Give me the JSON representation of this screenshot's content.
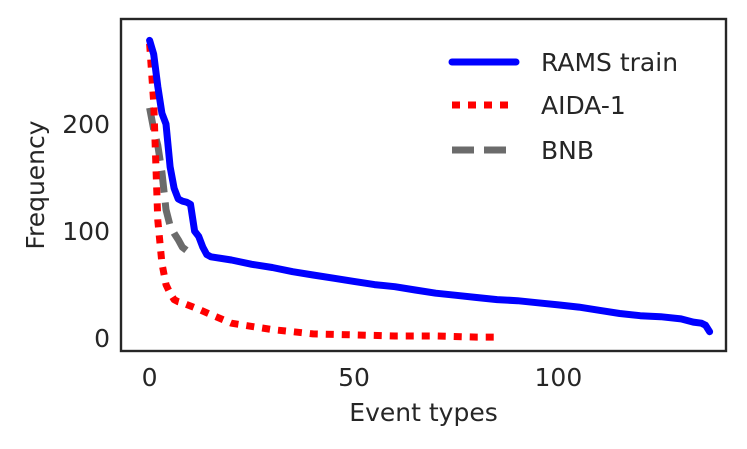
{
  "chart_data": {
    "type": "line",
    "title": "",
    "xlabel": "Event types",
    "ylabel": "Frequency",
    "xlim": [
      -7,
      141
    ],
    "ylim": [
      -12,
      298
    ],
    "xticks": [
      0,
      50,
      100
    ],
    "yticks": [
      0,
      100,
      200
    ],
    "grid": false,
    "legend": "top-right",
    "series": [
      {
        "name": "RAMS train",
        "color": "#0000ff",
        "dash": "solid",
        "x": [
          0,
          1,
          2,
          3,
          4,
          5,
          6,
          7,
          8,
          9,
          10,
          11,
          12,
          13,
          14,
          15,
          20,
          25,
          30,
          35,
          40,
          45,
          50,
          55,
          60,
          65,
          70,
          75,
          80,
          85,
          90,
          95,
          100,
          105,
          110,
          115,
          120,
          125,
          130,
          133,
          135,
          136,
          137
        ],
        "y": [
          278,
          265,
          235,
          210,
          200,
          160,
          140,
          130,
          128,
          127,
          125,
          100,
          95,
          85,
          78,
          76,
          73,
          69,
          66,
          62,
          59,
          56,
          53,
          50,
          48,
          45,
          42,
          40,
          38,
          36,
          35,
          33,
          31,
          29,
          26,
          23,
          21,
          20,
          18,
          15,
          14,
          12,
          6
        ]
      },
      {
        "name": "AIDA-1",
        "color": "#ff0000",
        "dash": "dotted",
        "x": [
          0,
          1,
          2,
          3,
          4,
          5,
          6,
          7,
          8,
          10,
          12,
          15,
          20,
          25,
          30,
          35,
          40,
          50,
          60,
          70,
          80,
          85
        ],
        "y": [
          275,
          220,
          110,
          70,
          50,
          42,
          36,
          34,
          33,
          30,
          27,
          22,
          14,
          11,
          8,
          6,
          4,
          3,
          2,
          2,
          1,
          1
        ]
      },
      {
        "name": "BNB",
        "color": "#6b6b6b",
        "dash": "dashed",
        "x": [
          0,
          1,
          2,
          3,
          4,
          5,
          6,
          7,
          8,
          9
        ],
        "y": [
          215,
          195,
          180,
          155,
          120,
          105,
          98,
          92,
          85,
          82
        ]
      }
    ]
  }
}
